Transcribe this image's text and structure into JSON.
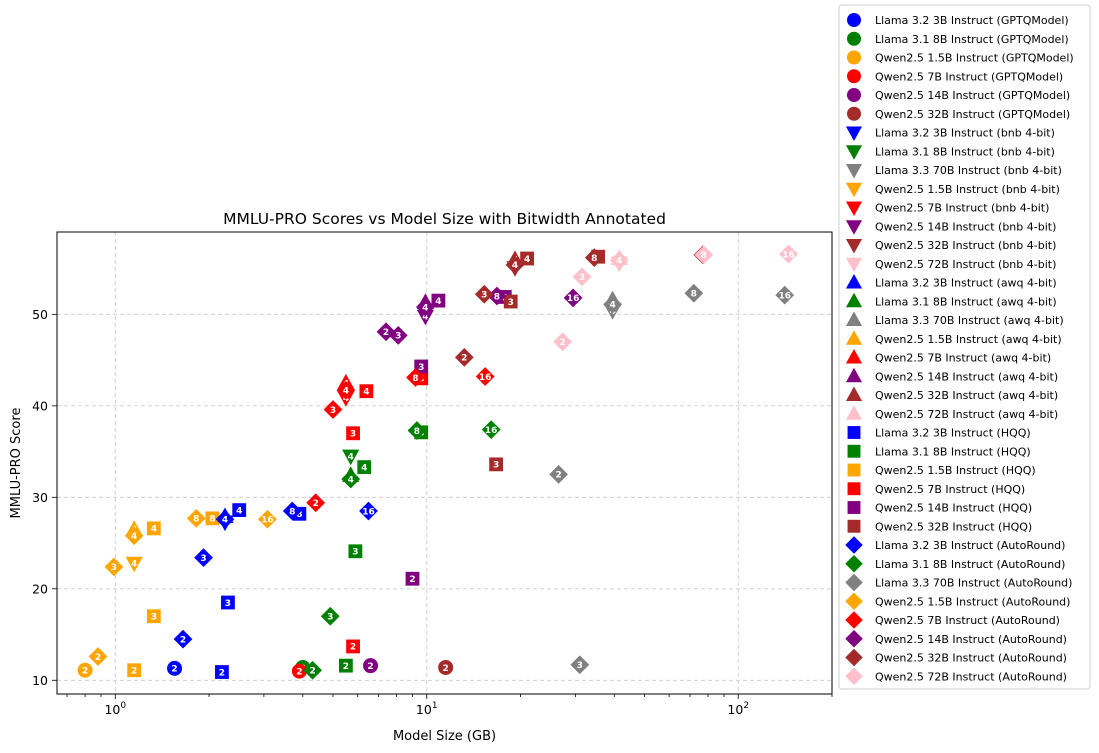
{
  "chart_data": {
    "type": "scatter",
    "title": "MMLU-PRO Scores vs Model Size with Bitwidth Annotated",
    "xlabel": "Model Size (GB)",
    "ylabel": "MMLU-PRO Score",
    "x_scale": "log",
    "xlim": [
      0.65,
      200
    ],
    "ylim": [
      8.5,
      59
    ],
    "x_ticks": [
      {
        "value": 1,
        "base": "10",
        "exp": "0"
      },
      {
        "value": 10,
        "base": "10",
        "exp": "1"
      },
      {
        "value": 100,
        "base": "10",
        "exp": "2"
      }
    ],
    "y_ticks": [
      10,
      20,
      30,
      40,
      50
    ],
    "grid": true,
    "legend_position": "right, outside",
    "colors": {
      "Llama 3.2 3B": "#0000ff",
      "Llama 3.1 8B": "#008000",
      "Llama 3.3 70B": "#808080",
      "Qwen2.5 1.5B": "#ffa500",
      "Qwen2.5 7B": "#ff0000",
      "Qwen2.5 14B": "#800080",
      "Qwen2.5 32B": "#a52a2a",
      "Qwen2.5 72B": "#ffc0cb"
    },
    "series": [
      {
        "name": "Llama 3.2 3B Instruct (GPTQModel)",
        "marker": "circle",
        "color": "#0000ff",
        "points": [
          {
            "x": 1.55,
            "y": 11.3,
            "label": "2"
          }
        ]
      },
      {
        "name": "Llama 3.1 8B Instruct (GPTQModel)",
        "marker": "circle",
        "color": "#008000",
        "points": [
          {
            "x": 4.0,
            "y": 11.4,
            "label": "2"
          }
        ]
      },
      {
        "name": "Qwen2.5 1.5B Instruct (GPTQModel)",
        "marker": "circle",
        "color": "#ffa500",
        "points": [
          {
            "x": 0.8,
            "y": 11.1,
            "label": "2"
          }
        ]
      },
      {
        "name": "Qwen2.5 7B Instruct (GPTQModel)",
        "marker": "circle",
        "color": "#ff0000",
        "points": [
          {
            "x": 3.9,
            "y": 11.0,
            "label": "2"
          }
        ]
      },
      {
        "name": "Qwen2.5 14B Instruct (GPTQModel)",
        "marker": "circle",
        "color": "#800080",
        "points": [
          {
            "x": 6.6,
            "y": 11.6,
            "label": "2"
          }
        ]
      },
      {
        "name": "Qwen2.5 32B Instruct (GPTQModel)",
        "marker": "circle",
        "color": "#a52a2a",
        "points": [
          {
            "x": 11.5,
            "y": 11.4,
            "label": "2"
          }
        ]
      },
      {
        "name": "Llama 3.2 3B Instruct (bnb 4-bit)",
        "marker": "triangle-down",
        "color": "#0000ff",
        "points": [
          {
            "x": 2.25,
            "y": 27.3,
            "label": "4"
          }
        ]
      },
      {
        "name": "Llama 3.1 8B Instruct (bnb 4-bit)",
        "marker": "triangle-down",
        "color": "#008000",
        "points": [
          {
            "x": 5.7,
            "y": 34.5,
            "label": "4"
          }
        ]
      },
      {
        "name": "Llama 3.3 70B Instruct (bnb 4-bit)",
        "marker": "triangle-down",
        "color": "#808080",
        "points": [
          {
            "x": 39.5,
            "y": 50.4,
            "label": "4"
          }
        ]
      },
      {
        "name": "Qwen2.5 1.5B Instruct (bnb 4-bit)",
        "marker": "triangle-down",
        "color": "#ffa500",
        "points": [
          {
            "x": 1.15,
            "y": 22.8,
            "label": "4"
          }
        ]
      },
      {
        "name": "Qwen2.5 7B Instruct (bnb 4-bit)",
        "marker": "triangle-down",
        "color": "#ff0000",
        "points": [
          {
            "x": 5.5,
            "y": 40.9,
            "label": "4"
          }
        ]
      },
      {
        "name": "Qwen2.5 14B Instruct (bnb 4-bit)",
        "marker": "triangle-down",
        "color": "#800080",
        "points": [
          {
            "x": 9.9,
            "y": 49.8,
            "label": "4"
          }
        ]
      },
      {
        "name": "Qwen2.5 32B Instruct (bnb 4-bit)",
        "marker": "triangle-down",
        "color": "#a52a2a",
        "points": [
          {
            "x": 19.2,
            "y": 55.1,
            "label": "4"
          }
        ]
      },
      {
        "name": "Qwen2.5 72B Instruct (bnb 4-bit)",
        "marker": "triangle-down",
        "color": "#ffc0cb",
        "points": [
          {
            "x": 41.5,
            "y": 55.6,
            "label": "4"
          }
        ]
      },
      {
        "name": "Llama 3.2 3B Instruct (awq 4-bit)",
        "marker": "triangle-up",
        "color": "#0000ff",
        "points": [
          {
            "x": 2.25,
            "y": 27.9,
            "label": "4"
          }
        ]
      },
      {
        "name": "Llama 3.1 8B Instruct (awq 4-bit)",
        "marker": "triangle-up",
        "color": "#008000",
        "points": [
          {
            "x": 5.7,
            "y": 32.4,
            "label": "4"
          }
        ]
      },
      {
        "name": "Llama 3.3 70B Instruct (awq 4-bit)",
        "marker": "triangle-up",
        "color": "#808080",
        "points": [
          {
            "x": 39.5,
            "y": 51.6,
            "label": "4"
          }
        ]
      },
      {
        "name": "Qwen2.5 1.5B Instruct (awq 4-bit)",
        "marker": "triangle-up",
        "color": "#ffa500",
        "points": [
          {
            "x": 1.15,
            "y": 26.5,
            "label": "4"
          }
        ]
      },
      {
        "name": "Qwen2.5 7B Instruct (awq 4-bit)",
        "marker": "triangle-up",
        "color": "#ff0000",
        "points": [
          {
            "x": 5.5,
            "y": 42.5,
            "label": "4"
          }
        ]
      },
      {
        "name": "Qwen2.5 14B Instruct (awq 4-bit)",
        "marker": "triangle-up",
        "color": "#800080",
        "points": [
          {
            "x": 9.9,
            "y": 51.3,
            "label": "4"
          }
        ]
      },
      {
        "name": "Qwen2.5 32B Instruct (awq 4-bit)",
        "marker": "triangle-up",
        "color": "#a52a2a",
        "points": [
          {
            "x": 19.2,
            "y": 56.0,
            "label": "4"
          }
        ]
      },
      {
        "name": "Qwen2.5 72B Instruct (awq 4-bit)",
        "marker": "triangle-up",
        "color": "#ffc0cb",
        "points": [
          {
            "x": 41.5,
            "y": 56.1,
            "label": "4"
          }
        ]
      },
      {
        "name": "Llama 3.2 3B Instruct (HQQ)",
        "marker": "square",
        "color": "#0000ff",
        "points": [
          {
            "x": 2.2,
            "y": 10.9,
            "label": "2"
          },
          {
            "x": 2.3,
            "y": 18.5,
            "label": "3"
          },
          {
            "x": 2.5,
            "y": 28.6,
            "label": "4"
          },
          {
            "x": 3.9,
            "y": 28.2,
            "label": "8"
          }
        ]
      },
      {
        "name": "Llama 3.1 8B Instruct (HQQ)",
        "marker": "square",
        "color": "#008000",
        "points": [
          {
            "x": 5.5,
            "y": 11.6,
            "label": "2"
          },
          {
            "x": 5.9,
            "y": 24.1,
            "label": "3"
          },
          {
            "x": 6.3,
            "y": 33.3,
            "label": "4"
          },
          {
            "x": 9.6,
            "y": 37.1,
            "label": "8"
          }
        ]
      },
      {
        "name": "Qwen2.5 1.5B Instruct (HQQ)",
        "marker": "square",
        "color": "#ffa500",
        "points": [
          {
            "x": 1.15,
            "y": 11.1,
            "label": "2"
          },
          {
            "x": 1.33,
            "y": 17.0,
            "label": "3"
          },
          {
            "x": 1.33,
            "y": 26.6,
            "label": "4"
          },
          {
            "x": 2.05,
            "y": 27.7,
            "label": "8"
          }
        ]
      },
      {
        "name": "Qwen2.5 7B Instruct (HQQ)",
        "marker": "square",
        "color": "#ff0000",
        "points": [
          {
            "x": 5.8,
            "y": 13.7,
            "label": "2"
          },
          {
            "x": 5.8,
            "y": 37.0,
            "label": "3"
          },
          {
            "x": 6.4,
            "y": 41.6,
            "label": "4"
          },
          {
            "x": 9.6,
            "y": 43.0,
            "label": "8"
          }
        ]
      },
      {
        "name": "Qwen2.5 14B Instruct (HQQ)",
        "marker": "square",
        "color": "#800080",
        "points": [
          {
            "x": 9.0,
            "y": 21.1,
            "label": "2"
          },
          {
            "x": 9.6,
            "y": 44.3,
            "label": "3"
          },
          {
            "x": 10.9,
            "y": 51.5,
            "label": "4"
          },
          {
            "x": 17.8,
            "y": 51.9,
            "label": "8"
          }
        ]
      },
      {
        "name": "Qwen2.5 32B Instruct (HQQ)",
        "marker": "square",
        "color": "#a52a2a",
        "points": [
          {
            "x": 16.7,
            "y": 33.6,
            "label": "3"
          },
          {
            "x": 18.6,
            "y": 51.4,
            "label": "3"
          },
          {
            "x": 21.0,
            "y": 56.1,
            "label": "4"
          },
          {
            "x": 35.5,
            "y": 56.3,
            "label": "8"
          }
        ]
      },
      {
        "name": "Llama 3.2 3B Instruct (AutoRound)",
        "marker": "diamond",
        "color": "#0000ff",
        "points": [
          {
            "x": 1.65,
            "y": 14.5,
            "label": "2"
          },
          {
            "x": 1.92,
            "y": 23.4,
            "label": "3"
          },
          {
            "x": 2.25,
            "y": 27.6,
            "label": "4"
          },
          {
            "x": 3.7,
            "y": 28.5,
            "label": "8"
          },
          {
            "x": 6.5,
            "y": 28.5,
            "label": "16"
          }
        ]
      },
      {
        "name": "Llama 3.1 8B Instruct (AutoRound)",
        "marker": "diamond",
        "color": "#008000",
        "points": [
          {
            "x": 4.3,
            "y": 11.1,
            "label": "2"
          },
          {
            "x": 4.9,
            "y": 17.0,
            "label": "3"
          },
          {
            "x": 5.7,
            "y": 32.0,
            "label": "4"
          },
          {
            "x": 9.3,
            "y": 37.3,
            "label": "8"
          },
          {
            "x": 16.1,
            "y": 37.4,
            "label": "16"
          }
        ]
      },
      {
        "name": "Llama 3.3 70B Instruct (AutoRound)",
        "marker": "diamond",
        "color": "#808080",
        "points": [
          {
            "x": 31.0,
            "y": 11.7,
            "label": "3"
          },
          {
            "x": 26.5,
            "y": 32.5,
            "label": "2"
          },
          {
            "x": 39.5,
            "y": 51.1,
            "label": "4"
          },
          {
            "x": 72.0,
            "y": 52.3,
            "label": "8"
          },
          {
            "x": 141.0,
            "y": 52.1,
            "label": "16"
          }
        ]
      },
      {
        "name": "Qwen2.5 1.5B Instruct (AutoRound)",
        "marker": "diamond",
        "color": "#ffa500",
        "points": [
          {
            "x": 0.88,
            "y": 12.6,
            "label": "2"
          },
          {
            "x": 0.99,
            "y": 22.4,
            "label": "3"
          },
          {
            "x": 1.15,
            "y": 25.8,
            "label": "4"
          },
          {
            "x": 1.82,
            "y": 27.7,
            "label": "8"
          },
          {
            "x": 3.08,
            "y": 27.6,
            "label": "16"
          }
        ]
      },
      {
        "name": "Qwen2.5 7B Instruct (AutoRound)",
        "marker": "diamond",
        "color": "#ff0000",
        "points": [
          {
            "x": 4.4,
            "y": 29.4,
            "label": "2"
          },
          {
            "x": 5.0,
            "y": 39.6,
            "label": "3"
          },
          {
            "x": 5.5,
            "y": 41.7,
            "label": "4"
          },
          {
            "x": 9.2,
            "y": 43.1,
            "label": "8"
          },
          {
            "x": 15.4,
            "y": 43.2,
            "label": "16"
          }
        ]
      },
      {
        "name": "Qwen2.5 14B Instruct (AutoRound)",
        "marker": "diamond",
        "color": "#800080",
        "points": [
          {
            "x": 7.4,
            "y": 48.1,
            "label": "2"
          },
          {
            "x": 8.1,
            "y": 47.7,
            "label": "3"
          },
          {
            "x": 9.9,
            "y": 50.8,
            "label": "4"
          },
          {
            "x": 16.8,
            "y": 52.0,
            "label": "8"
          },
          {
            "x": 29.5,
            "y": 51.8,
            "label": "16"
          }
        ]
      },
      {
        "name": "Qwen2.5 32B Instruct (AutoRound)",
        "marker": "diamond",
        "color": "#a52a2a",
        "points": [
          {
            "x": 13.2,
            "y": 45.3,
            "label": "2"
          },
          {
            "x": 15.3,
            "y": 52.2,
            "label": "3"
          },
          {
            "x": 19.2,
            "y": 55.4,
            "label": "4"
          },
          {
            "x": 34.5,
            "y": 56.2,
            "label": "8"
          },
          {
            "x": 77.0,
            "y": 56.5,
            "label": "16"
          }
        ]
      },
      {
        "name": "Qwen2.5 72B Instruct (AutoRound)",
        "marker": "diamond",
        "color": "#ffc0cb",
        "points": [
          {
            "x": 27.3,
            "y": 47.0,
            "label": "2"
          },
          {
            "x": 31.5,
            "y": 54.1,
            "label": "3"
          },
          {
            "x": 41.5,
            "y": 55.9,
            "label": "4"
          },
          {
            "x": 77.5,
            "y": 56.5,
            "label": "8"
          },
          {
            "x": 145.0,
            "y": 56.6,
            "label": "16"
          }
        ]
      }
    ]
  }
}
